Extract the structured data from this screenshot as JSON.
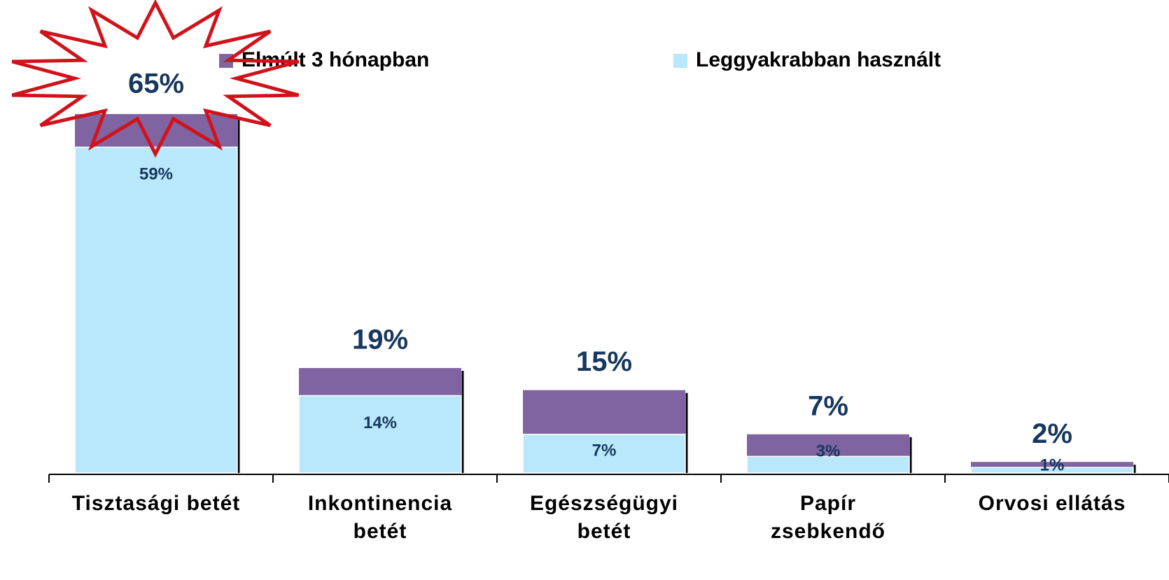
{
  "chart_data": {
    "type": "bar",
    "categories": [
      "Tisztasági betét",
      "Inkontinencia\nbetét",
      "Egészségügyi\nbetét",
      "Papír\nzsebkendő",
      "Orvosi ellátás"
    ],
    "series": [
      {
        "name": "Elmúlt 3 hónapban",
        "color": "#8064a2",
        "values": [
          65,
          19,
          15,
          7,
          2
        ],
        "value_labels": [
          "65%",
          "19%",
          "15%",
          "7%",
          "2%"
        ]
      },
      {
        "name": "Leggyakrabban használt",
        "color": "#b9e8fa",
        "values": [
          59,
          14,
          7,
          3,
          1
        ],
        "value_labels": [
          "59%",
          "14%",
          "7%",
          "3%",
          "1%"
        ]
      }
    ]
  }
}
